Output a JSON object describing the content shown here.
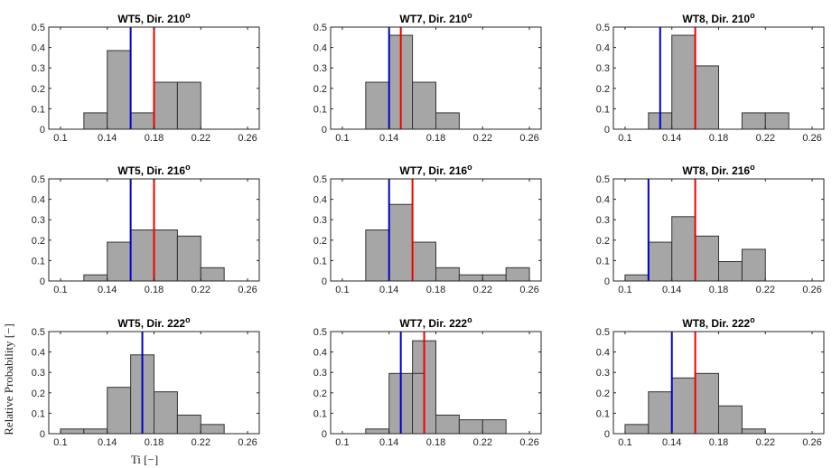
{
  "figure": {
    "ylabel": "Relative Probability [−]",
    "xlabel": "Ti [−]"
  },
  "chart_data": [
    {
      "type": "bar",
      "title": "WT5, Dir. 210",
      "title_sup": "o",
      "bin_edges": [
        0.12,
        0.14,
        0.16,
        0.18,
        0.2,
        0.22
      ],
      "values": [
        0.08,
        0.385,
        0.08,
        0.23,
        0.23
      ],
      "vlines": [
        {
          "x": 0.16,
          "color": "#0000cc"
        },
        {
          "x": 0.18,
          "color": "#ee0000"
        }
      ],
      "xlim": [
        0.09,
        0.27
      ],
      "ylim": [
        0,
        0.5
      ],
      "xticks": [
        "0.1",
        "0.14",
        "0.18",
        "0.22",
        "0.26"
      ],
      "yticks": [
        "0",
        "0.1",
        "0.2",
        "0.3",
        "0.4",
        "0.5"
      ],
      "grid": false
    },
    {
      "type": "bar",
      "title": "WT7, Dir. 210",
      "title_sup": "o",
      "bin_edges": [
        0.12,
        0.14,
        0.16,
        0.18,
        0.2
      ],
      "values": [
        0.23,
        0.46,
        0.23,
        0.08
      ],
      "extra_bars": [
        {
          "x0": 0.14,
          "x1": 0.15,
          "value": 0.46
        }
      ],
      "vlines": [
        {
          "x": 0.14,
          "color": "#0000cc"
        },
        {
          "x": 0.15,
          "color": "#ee0000"
        }
      ],
      "xlim": [
        0.09,
        0.27
      ],
      "ylim": [
        0,
        0.5
      ],
      "xticks": [
        "0.1",
        "0.14",
        "0.18",
        "0.22",
        "0.26"
      ],
      "yticks": [
        "0",
        "0.1",
        "0.2",
        "0.3",
        "0.4",
        "0.5"
      ],
      "grid": false
    },
    {
      "type": "bar",
      "title": "WT8, Dir. 210",
      "title_sup": "o",
      "bin_edges": [
        0.12,
        0.14,
        0.16,
        0.18,
        0.2,
        0.22,
        0.24
      ],
      "values": [
        0.08,
        0.46,
        0.31,
        0,
        0.08,
        0.08
      ],
      "vlines": [
        {
          "x": 0.13,
          "color": "#0000cc"
        },
        {
          "x": 0.16,
          "color": "#ee0000"
        }
      ],
      "xlim": [
        0.09,
        0.27
      ],
      "ylim": [
        0,
        0.5
      ],
      "xticks": [
        "0.1",
        "0.14",
        "0.18",
        "0.22",
        "0.26"
      ],
      "yticks": [
        "0",
        "0.1",
        "0.2",
        "0.3",
        "0.4",
        "0.5"
      ],
      "grid": false
    },
    {
      "type": "bar",
      "title": "WT5, Dir. 216",
      "title_sup": "o",
      "bin_edges": [
        0.12,
        0.14,
        0.16,
        0.18,
        0.2,
        0.22,
        0.24
      ],
      "values": [
        0.03,
        0.19,
        0.25,
        0.25,
        0.22,
        0.065
      ],
      "vlines": [
        {
          "x": 0.16,
          "color": "#0000cc"
        },
        {
          "x": 0.18,
          "color": "#ee0000"
        }
      ],
      "xlim": [
        0.09,
        0.27
      ],
      "ylim": [
        0,
        0.5
      ],
      "xticks": [
        "0.1",
        "0.14",
        "0.18",
        "0.22",
        "0.26"
      ],
      "yticks": [
        "0",
        "0.1",
        "0.2",
        "0.3",
        "0.4",
        "0.5"
      ],
      "grid": false
    },
    {
      "type": "bar",
      "title": "WT7, Dir. 216",
      "title_sup": "o",
      "bin_edges": [
        0.12,
        0.14,
        0.16,
        0.18,
        0.2,
        0.22,
        0.24,
        0.26
      ],
      "values": [
        0.25,
        0.375,
        0.19,
        0.065,
        0.03,
        0.03,
        0.065
      ],
      "vlines": [
        {
          "x": 0.14,
          "color": "#0000cc"
        },
        {
          "x": 0.16,
          "color": "#ee0000"
        }
      ],
      "xlim": [
        0.09,
        0.27
      ],
      "ylim": [
        0,
        0.5
      ],
      "xticks": [
        "0.1",
        "0.14",
        "0.18",
        "0.22",
        "0.26"
      ],
      "yticks": [
        "0",
        "0.1",
        "0.2",
        "0.3",
        "0.4",
        "0.5"
      ],
      "grid": false
    },
    {
      "type": "bar",
      "title": "WT8, Dir. 216",
      "title_sup": "o",
      "bin_edges": [
        0.1,
        0.12,
        0.14,
        0.16,
        0.18,
        0.2,
        0.22
      ],
      "values": [
        0.03,
        0.19,
        0.315,
        0.22,
        0.095,
        0.155
      ],
      "vlines": [
        {
          "x": 0.12,
          "color": "#0000cc"
        },
        {
          "x": 0.16,
          "color": "#ee0000"
        }
      ],
      "xlim": [
        0.09,
        0.27
      ],
      "ylim": [
        0,
        0.5
      ],
      "xticks": [
        "0.1",
        "0.14",
        "0.18",
        "0.22",
        "0.26"
      ],
      "yticks": [
        "0",
        "0.1",
        "0.2",
        "0.3",
        "0.4",
        "0.5"
      ],
      "grid": false
    },
    {
      "type": "bar",
      "title": "WT5, Dir. 222",
      "title_sup": "o",
      "bin_edges": [
        0.1,
        0.12,
        0.14,
        0.16,
        0.18,
        0.2,
        0.22,
        0.24
      ],
      "values": [
        0.023,
        0.023,
        0.227,
        0.386,
        0.205,
        0.091,
        0.045
      ],
      "vlines": [
        {
          "x": 0.17,
          "color": "#0000cc"
        }
      ],
      "xlim": [
        0.09,
        0.27
      ],
      "ylim": [
        0,
        0.5
      ],
      "xticks": [
        "0.1",
        "0.14",
        "0.18",
        "0.22",
        "0.26"
      ],
      "yticks": [
        "0",
        "0.1",
        "0.2",
        "0.3",
        "0.4",
        "0.5"
      ],
      "grid": false
    },
    {
      "type": "bar",
      "title": "WT7, Dir. 222",
      "title_sup": "o",
      "bin_edges": [
        0.12,
        0.14,
        0.16,
        0.18,
        0.2,
        0.22,
        0.24
      ],
      "values": [
        0.023,
        0.295,
        0.455,
        0.091,
        0.068,
        0.068
      ],
      "extra_bars": [
        {
          "x0": 0.16,
          "x1": 0.17,
          "value": 0.295
        }
      ],
      "vlines": [
        {
          "x": 0.15,
          "color": "#0000cc"
        },
        {
          "x": 0.17,
          "color": "#ee0000"
        }
      ],
      "xlim": [
        0.09,
        0.27
      ],
      "ylim": [
        0,
        0.5
      ],
      "xticks": [
        "0.1",
        "0.14",
        "0.18",
        "0.22",
        "0.26"
      ],
      "yticks": [
        "0",
        "0.1",
        "0.2",
        "0.3",
        "0.4",
        "0.5"
      ],
      "grid": false
    },
    {
      "type": "bar",
      "title": "WT8, Dir. 222",
      "title_sup": "o",
      "bin_edges": [
        0.1,
        0.12,
        0.14,
        0.16,
        0.18,
        0.2,
        0.22
      ],
      "values": [
        0.045,
        0.205,
        0.273,
        0.295,
        0.136,
        0.023
      ],
      "vlines": [
        {
          "x": 0.14,
          "color": "#0000cc"
        },
        {
          "x": 0.16,
          "color": "#ee0000"
        }
      ],
      "xlim": [
        0.09,
        0.27
      ],
      "ylim": [
        0,
        0.5
      ],
      "xticks": [
        "0.1",
        "0.14",
        "0.18",
        "0.22",
        "0.26"
      ],
      "yticks": [
        "0",
        "0.1",
        "0.2",
        "0.3",
        "0.4",
        "0.5"
      ],
      "grid": false
    }
  ],
  "colors": {
    "bar_fill": "#a6a6a6",
    "bar_edge": "#333333",
    "axis": "#262626"
  }
}
